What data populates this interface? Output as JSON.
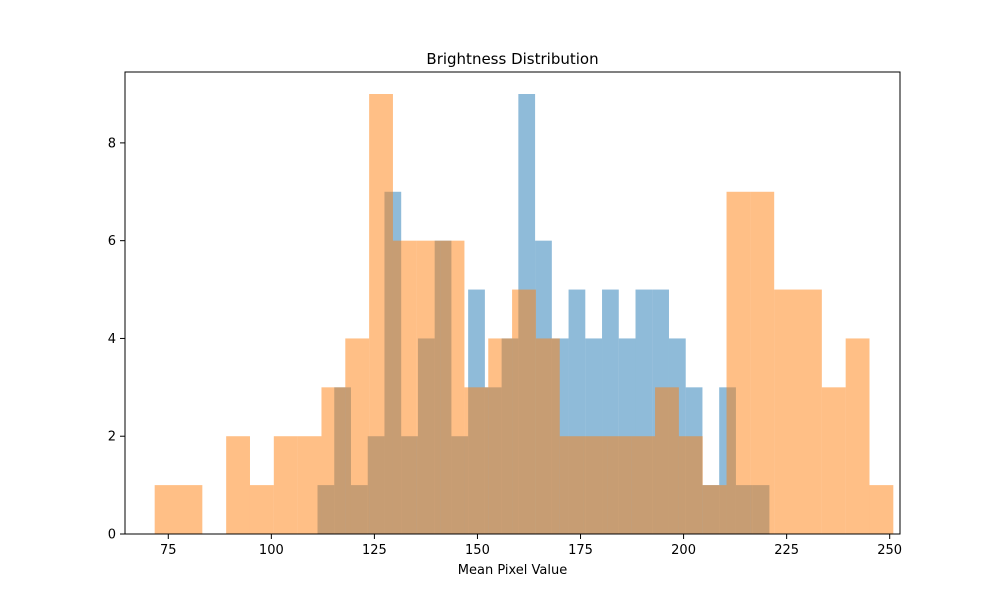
{
  "chart_data": {
    "type": "histogram",
    "title": "Brightness Distribution",
    "xlabel": "Mean Pixel Value",
    "ylabel": "",
    "xlim": [
      64.5,
      252.5
    ],
    "ylim": [
      0,
      9.45
    ],
    "xticks": [
      75,
      100,
      125,
      150,
      175,
      200,
      225,
      250
    ],
    "yticks": [
      0,
      2,
      4,
      6,
      8
    ],
    "legend": "none",
    "grid": false,
    "series": [
      {
        "color": "#1f77b4",
        "opacity": 0.5,
        "bin_start": 111.2,
        "bin_width": 4.06,
        "counts": [
          1,
          3,
          1,
          2,
          7,
          2,
          4,
          6,
          2,
          5,
          3,
          4,
          9,
          6,
          4,
          5,
          4,
          5,
          4,
          5,
          5,
          4,
          3,
          1,
          3,
          1,
          1
        ]
      },
      {
        "color": "#ff7f0e",
        "opacity": 0.5,
        "bin_start": 71.7,
        "bin_width": 5.78,
        "counts": [
          1,
          1,
          0,
          2,
          1,
          2,
          2,
          3,
          4,
          9,
          6,
          6,
          6,
          3,
          4,
          5,
          4,
          2,
          2,
          2,
          2,
          3,
          2,
          1,
          7,
          7,
          5,
          5,
          3,
          4,
          1
        ]
      }
    ]
  }
}
